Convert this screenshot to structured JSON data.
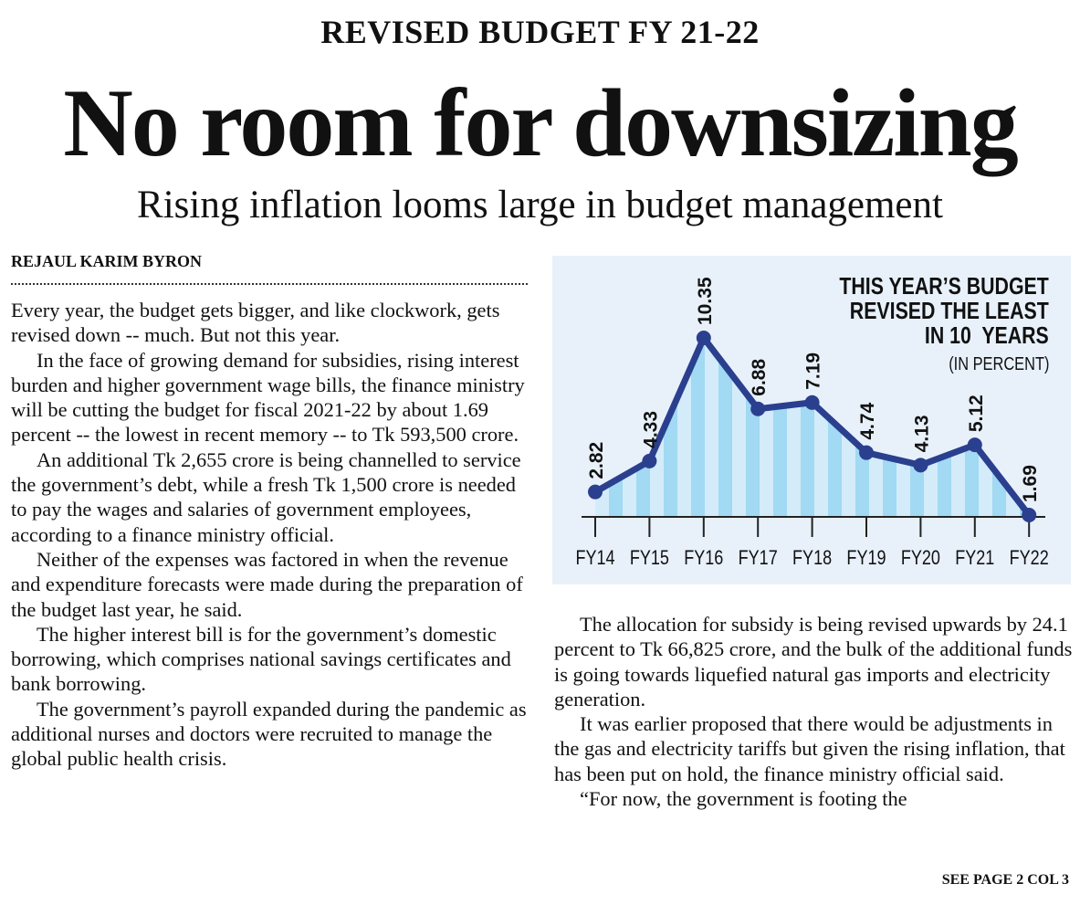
{
  "kicker": "REVISED BUDGET FY 21-22",
  "headline": "No room for downsizing",
  "deck": "Rising inflation looms large in budget management",
  "byline": "REJAUL KARIM BYRON",
  "left_paragraphs": [
    "Every year, the budget gets bigger, and like clockwork, gets revised down -- much. But not this year.",
    "In the face of growing demand for subsidies, rising interest burden and higher government wage bills, the finance ministry will be cutting the budget for fiscal 2021-22 by about 1.69 percent -- the lowest in recent memory -- to Tk 593,500 crore.",
    "An additional Tk 2,655 crore is being channelled to service the government’s debt, while a fresh Tk 1,500 crore is needed to pay the wages and salaries of government employees, according to a finance ministry official.",
    "Neither of the expenses was factored in when the revenue and expenditure forecasts were made during the preparation of the budget last year, he said.",
    "The higher interest bill is for the government’s domestic borrowing, which comprises national savings certificates and bank borrowing.",
    "The government’s payroll expanded during the pandemic as additional nurses and doctors were recruited to manage the global public health crisis."
  ],
  "right_paragraphs": [
    "The allocation for subsidy is being revised upwards by 24.1 percent to Tk 66,825 crore, and the bulk of the additional funds is going towards liquefied natural gas imports and electricity generation.",
    "It was earlier proposed that there would be adjustments in the gas and electricity tariffs but given the rising inflation, that has been put on hold, the finance ministry official said.",
    "“For now, the government is footing the"
  ],
  "continuation": "SEE PAGE 2 COL 3",
  "chart_data": {
    "type": "area",
    "title_lines": [
      "THIS YEAR’S BUDGET",
      "REVISED THE LEAST",
      "IN 10  YEARS"
    ],
    "subtitle": "(IN PERCENT)",
    "categories": [
      "FY14",
      "FY15",
      "FY16",
      "FY17",
      "FY18",
      "FY19",
      "FY20",
      "FY21",
      "FY22"
    ],
    "values": [
      2.82,
      4.33,
      10.35,
      6.88,
      7.19,
      4.74,
      4.13,
      5.12,
      1.69
    ],
    "labels": [
      "2.82",
      "4.33",
      "10.35",
      "6.88",
      "7.19",
      "4.74",
      "4.13",
      "5.12",
      "1.69"
    ],
    "ylim": [
      1.6,
      10.35
    ],
    "colors": {
      "line": "#2b3f8f",
      "stripe_light": "#d4ecf9",
      "stripe_dark": "#a2d9f3",
      "background": "#e8f1fa"
    }
  }
}
